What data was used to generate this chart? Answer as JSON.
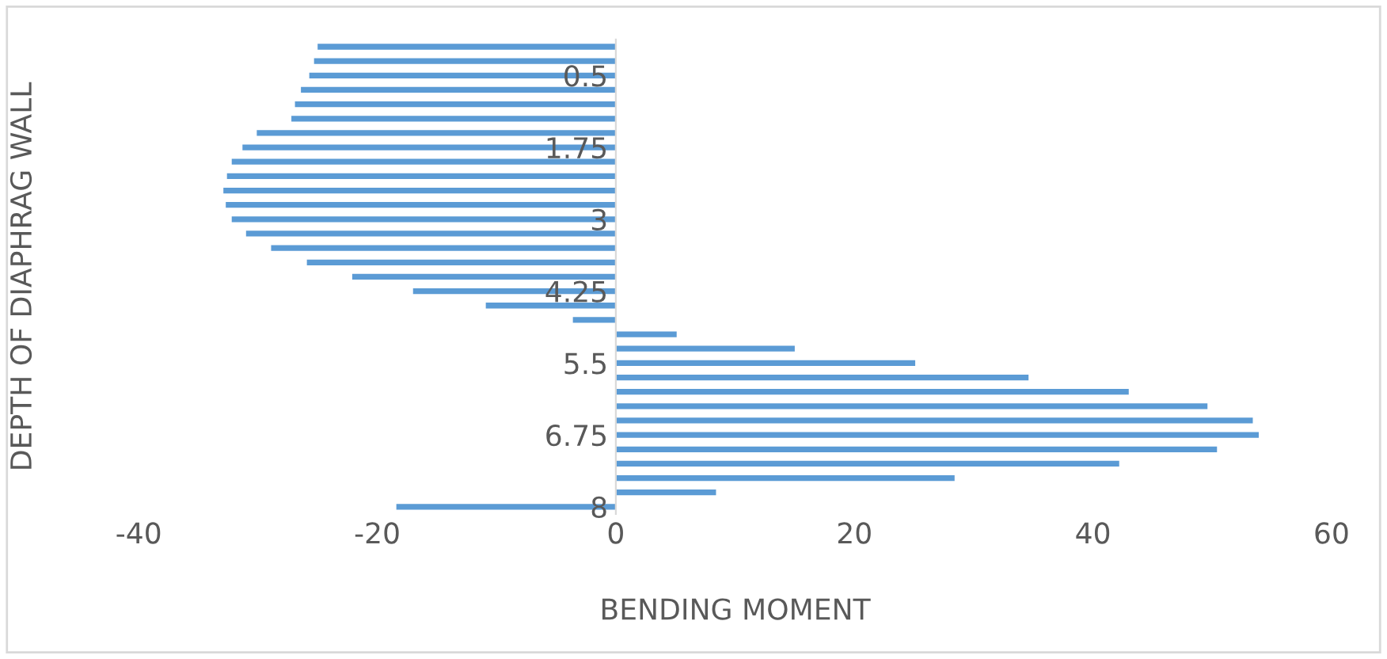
{
  "chart_data": {
    "type": "bar",
    "orientation": "horizontal",
    "xlabel": "BENDING MOMENT",
    "ylabel": "DEPTH OF DIAPHRAG WALL",
    "categories": [
      null,
      null,
      "0.5",
      null,
      null,
      null,
      null,
      "1.75",
      null,
      null,
      null,
      null,
      "3",
      null,
      null,
      null,
      null,
      "4.25",
      null,
      null,
      null,
      null,
      "5.5",
      null,
      null,
      null,
      null,
      "6.75",
      null,
      null,
      null,
      null,
      "8"
    ],
    "values": [
      -25,
      -25.3,
      -25.7,
      -26.4,
      -26.9,
      -27.2,
      -30.1,
      -31.3,
      -32.2,
      -32.6,
      -32.9,
      -32.7,
      -32.2,
      -31,
      -28.9,
      -25.9,
      -22.1,
      -17,
      -10.9,
      -3.6,
      5.1,
      15,
      25.1,
      34.6,
      43,
      49.6,
      53.4,
      53.9,
      50.4,
      42.2,
      28.4,
      8.4,
      -18.4
    ],
    "color": "#5b9bd5",
    "xlim": [
      -40,
      60
    ],
    "xticks": [
      -40,
      -20,
      0,
      20,
      40,
      60
    ],
    "grid": false
  }
}
